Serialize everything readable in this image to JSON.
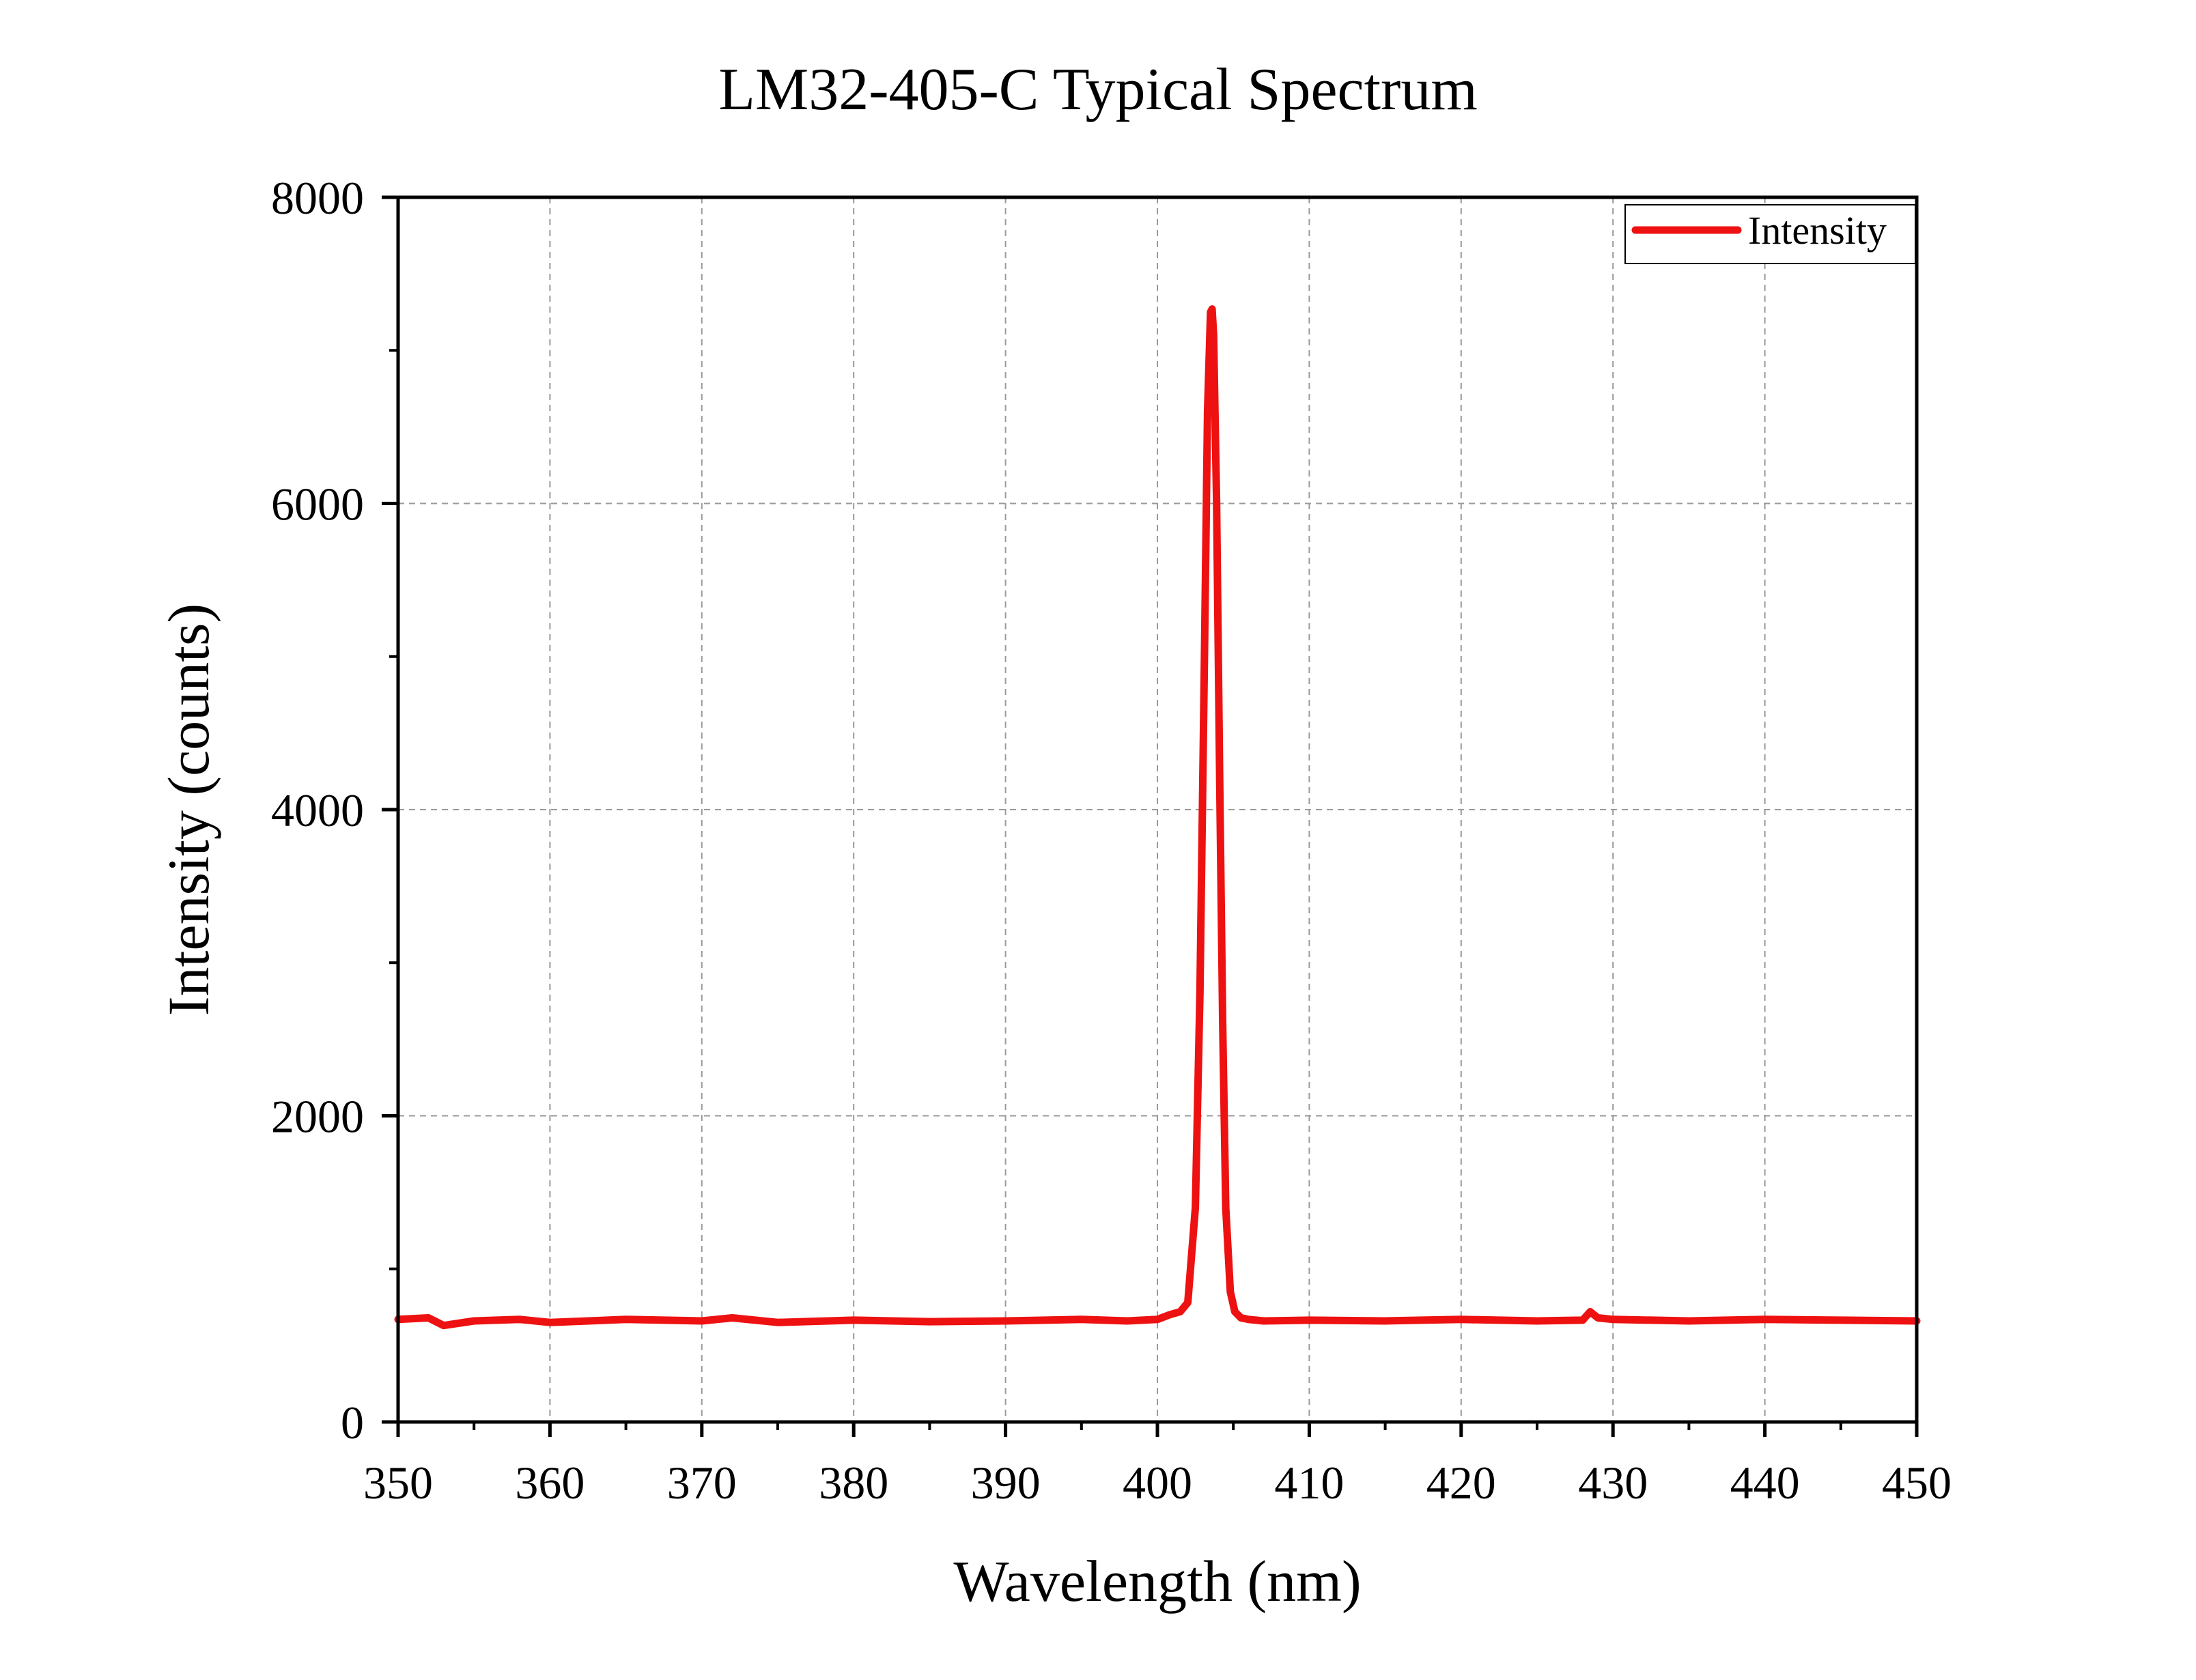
{
  "chart_data": {
    "type": "line",
    "title": "LM32-405-C Typical Spectrum",
    "xlabel": "Wavelength (nm)",
    "ylabel": "Intensity (counts)",
    "xlim": [
      350,
      450
    ],
    "ylim": [
      0,
      8000
    ],
    "x_ticks": [
      "350",
      "360",
      "370",
      "380",
      "390",
      "400",
      "410",
      "420",
      "430",
      "440",
      "450"
    ],
    "y_ticks": [
      "0",
      "2000",
      "4000",
      "6000",
      "8000"
    ],
    "grid": true,
    "legend_position": "top-right",
    "series": [
      {
        "name": "Intensity",
        "color": "#ee1111",
        "x": [
          350,
          352,
          353,
          355,
          358,
          360,
          365,
          370,
          372,
          375,
          380,
          385,
          390,
          395,
          398,
          400,
          400.8,
          401.5,
          402,
          402.5,
          402.8,
          403.1,
          403.3,
          403.5,
          403.6,
          403.7,
          403.9,
          404.1,
          404.3,
          404.5,
          404.8,
          405.1,
          405.5,
          406,
          407,
          410,
          415,
          420,
          425,
          428,
          428.5,
          429,
          430,
          435,
          440,
          445,
          450
        ],
        "y": [
          670,
          680,
          630,
          660,
          670,
          650,
          670,
          660,
          680,
          650,
          665,
          655,
          660,
          670,
          660,
          670,
          700,
          720,
          780,
          1400,
          2800,
          5000,
          6600,
          7250,
          7270,
          7100,
          6000,
          4200,
          2600,
          1400,
          850,
          720,
          680,
          670,
          660,
          665,
          660,
          670,
          660,
          665,
          720,
          680,
          670,
          660,
          670,
          665,
          660
        ]
      }
    ]
  }
}
